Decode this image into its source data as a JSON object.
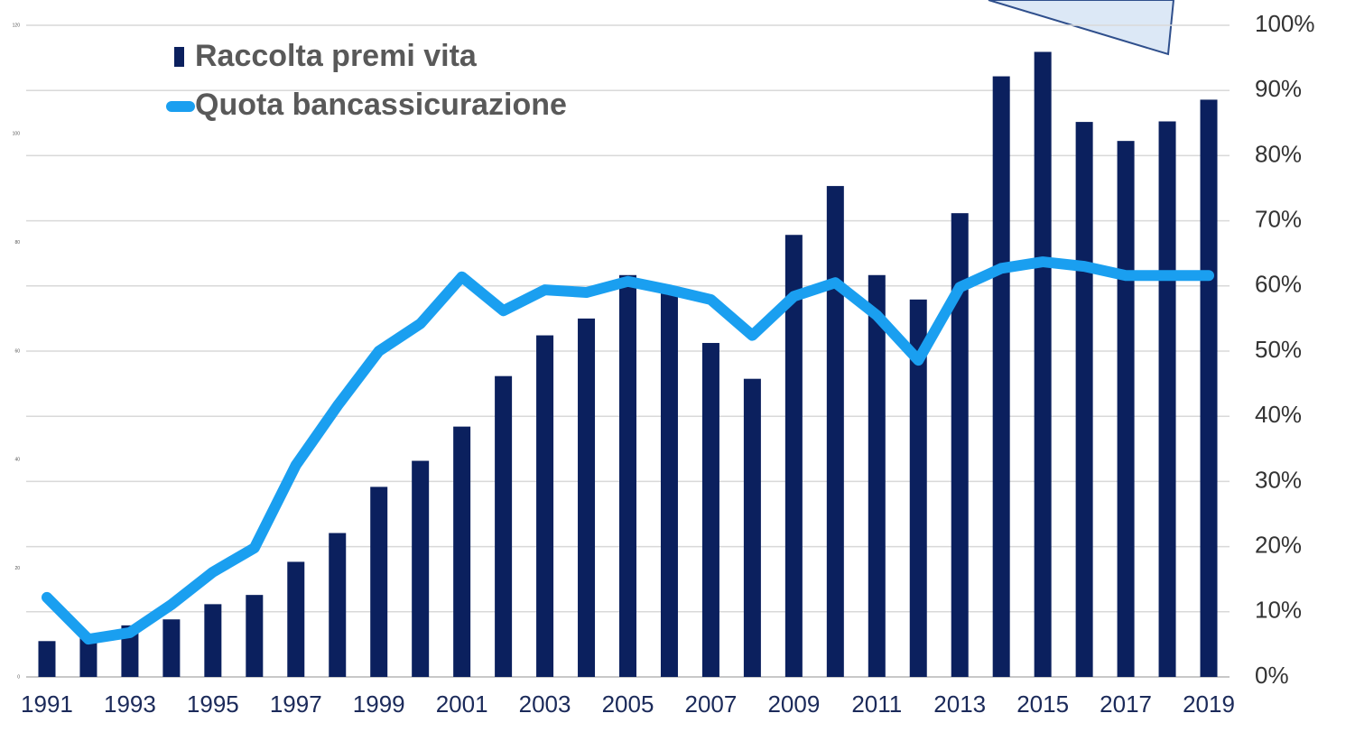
{
  "chart_data": {
    "type": "bar+line",
    "categories": [
      "1991",
      null,
      "1993",
      null,
      "1995",
      null,
      "1997",
      null,
      "1999",
      null,
      "2001",
      null,
      "2003",
      null,
      "2005",
      null,
      "2007",
      null,
      "2009",
      null,
      "2011",
      null,
      "2013",
      null,
      "2015",
      null,
      "2017",
      null,
      "2019"
    ],
    "series": [
      {
        "name": "Raccolta premi vita",
        "color": "#0b205e",
        "type": "bar",
        "values": [
          6.6,
          7.5,
          9.5,
          10.6,
          13.4,
          15.1,
          21.2,
          26.5,
          35,
          39.8,
          46.1,
          55.4,
          62.9,
          66,
          74,
          71.3,
          61.5,
          54.9,
          81.4,
          90.4,
          74,
          69.5,
          85.4,
          110.6,
          115.1,
          102.2,
          98.7,
          102.3,
          106.3
        ]
      },
      {
        "name": "Quota bancassicurazione",
        "color": "#1a9ff0",
        "type": "line",
        "axis": "y2",
        "values": [
          12.2,
          5.8,
          6.8,
          11.1,
          16.1,
          19.8,
          32.5,
          41.6,
          50,
          54.2,
          61.4,
          56.2,
          59.4,
          59,
          60.7,
          59.4,
          57.9,
          52.4,
          58.4,
          60.5,
          55.5,
          48.6,
          59.8,
          62.7,
          63.7,
          63,
          61.6,
          61.6,
          61.6
        ]
      }
    ],
    "ylim": [
      0,
      120
    ],
    "yticks": [
      0,
      20,
      40,
      60,
      80,
      100,
      120
    ],
    "y2lim": [
      0,
      100
    ],
    "y2ticks": [
      {
        "value": 0,
        "label": "0%"
      },
      {
        "value": 10,
        "label": "10%"
      },
      {
        "value": 20,
        "label": "20%"
      },
      {
        "value": 30,
        "label": "30%"
      },
      {
        "value": 40,
        "label": "40%"
      },
      {
        "value": 50,
        "label": "50%"
      },
      {
        "value": 60,
        "label": "60%"
      },
      {
        "value": 70,
        "label": "70%"
      },
      {
        "value": 80,
        "label": "80%"
      },
      {
        "value": 90,
        "label": "90%"
      },
      {
        "value": 100,
        "label": "100%"
      }
    ],
    "grid": true,
    "legend": "top-left"
  }
}
